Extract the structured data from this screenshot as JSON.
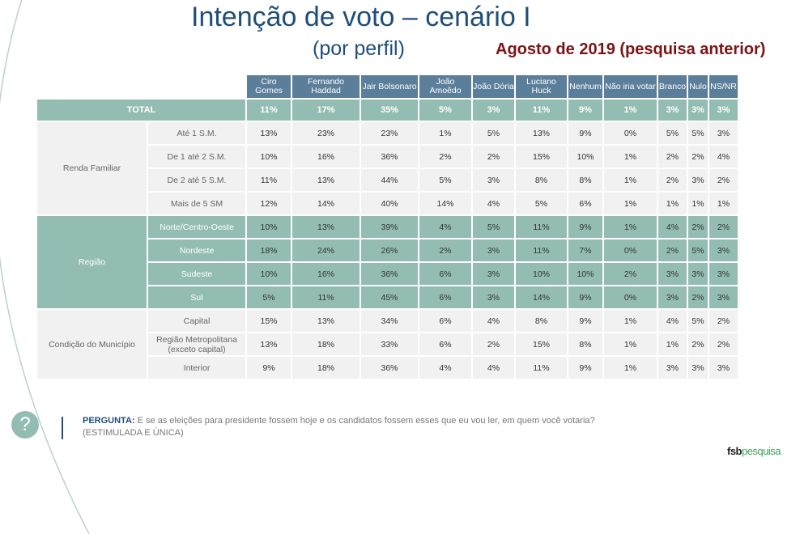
{
  "title": "Intenção de voto – cenário I",
  "subtitle": "(por perfil)",
  "period": "Agosto de 2019 (pesquisa anterior)",
  "colors": {
    "header": "#5b7e9a",
    "teal": "#93bdb3",
    "grey": "#f1f1f1",
    "title": "#1f4e79",
    "period": "#7b1417"
  },
  "table": {
    "columns": [
      "Ciro Gomes",
      "Fernando Haddad",
      "Jair Bolsonaro",
      "João Amoêdo",
      "João Dória",
      "Luciano Huck",
      "Nenhum",
      "Não iria votar",
      "Branco",
      "Nulo",
      "NS/NR"
    ],
    "total": {
      "label": "TOTAL",
      "values": [
        "11%",
        "17%",
        "35%",
        "5%",
        "3%",
        "11%",
        "9%",
        "1%",
        "3%",
        "3%",
        "3%"
      ]
    },
    "groups": [
      {
        "label": "Renda Familiar",
        "style": "g",
        "rows": [
          {
            "label": "Até 1 S.M.",
            "values": [
              "13%",
              "23%",
              "23%",
              "1%",
              "5%",
              "13%",
              "9%",
              "0%",
              "5%",
              "5%",
              "3%"
            ]
          },
          {
            "label": "De 1 até 2 S.M.",
            "values": [
              "10%",
              "16%",
              "36%",
              "2%",
              "2%",
              "15%",
              "10%",
              "1%",
              "2%",
              "2%",
              "4%"
            ]
          },
          {
            "label": "De 2 até 5 S.M.",
            "values": [
              "11%",
              "13%",
              "44%",
              "5%",
              "3%",
              "8%",
              "8%",
              "1%",
              "2%",
              "3%",
              "2%"
            ]
          },
          {
            "label": "Mais de 5 SM",
            "values": [
              "12%",
              "14%",
              "40%",
              "14%",
              "4%",
              "5%",
              "6%",
              "1%",
              "1%",
              "1%",
              "1%"
            ]
          }
        ]
      },
      {
        "label": "Região",
        "style": "t",
        "rows": [
          {
            "label": "Norte/Centro-Oeste",
            "values": [
              "10%",
              "13%",
              "39%",
              "4%",
              "5%",
              "11%",
              "9%",
              "1%",
              "4%",
              "2%",
              "2%"
            ]
          },
          {
            "label": "Nordeste",
            "values": [
              "18%",
              "24%",
              "26%",
              "2%",
              "3%",
              "11%",
              "7%",
              "0%",
              "2%",
              "5%",
              "3%"
            ]
          },
          {
            "label": "Sudeste",
            "values": [
              "10%",
              "16%",
              "36%",
              "6%",
              "3%",
              "10%",
              "10%",
              "2%",
              "3%",
              "3%",
              "3%"
            ]
          },
          {
            "label": "Sul",
            "values": [
              "5%",
              "11%",
              "45%",
              "6%",
              "3%",
              "14%",
              "9%",
              "0%",
              "3%",
              "2%",
              "3%"
            ]
          }
        ]
      },
      {
        "label": "Condição do Município",
        "style": "g",
        "rows": [
          {
            "label": "Capital",
            "values": [
              "15%",
              "13%",
              "34%",
              "6%",
              "4%",
              "8%",
              "9%",
              "1%",
              "4%",
              "5%",
              "2%"
            ]
          },
          {
            "label": "Região Metropolitana (exceto capital)",
            "values": [
              "13%",
              "18%",
              "33%",
              "6%",
              "2%",
              "15%",
              "8%",
              "1%",
              "1%",
              "2%",
              "2%"
            ]
          },
          {
            "label": "Interior",
            "values": [
              "9%",
              "18%",
              "36%",
              "4%",
              "4%",
              "11%",
              "9%",
              "1%",
              "3%",
              "3%",
              "3%"
            ]
          }
        ]
      }
    ]
  },
  "question": {
    "label": "PERGUNTA:",
    "text": "E se as eleições para presidente fossem hoje e os candidatos fossem esses que eu vou ler, em quem você votaria?",
    "note": "(ESTIMULADA E ÚNICA)"
  },
  "help_icon": "?",
  "logo": {
    "part1": "fsb",
    "part2": "pesquisa"
  }
}
